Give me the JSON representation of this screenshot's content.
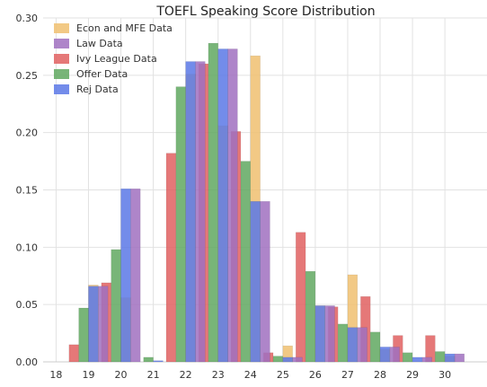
{
  "chart_data": {
    "type": "bar",
    "title": "TOEFL Speaking Score Distribution",
    "xlabel": "",
    "ylabel": "",
    "categories": [
      "18",
      "19",
      "20",
      "21",
      "22",
      "23",
      "24",
      "25",
      "26",
      "27",
      "28",
      "29",
      "30"
    ],
    "xlim": [
      17.6,
      31.3
    ],
    "ylim": [
      0,
      0.3
    ],
    "yticks": [
      0.0,
      0.05,
      0.1,
      0.15,
      0.2,
      0.25,
      0.3
    ],
    "ytick_labels": [
      "0.00",
      "0.05",
      "0.10",
      "0.15",
      "0.20",
      "0.25",
      "0.30"
    ],
    "grid": true,
    "legend_position": "top-left",
    "series": [
      {
        "name": "Econ and MFE Data",
        "color": "#f0c070",
        "offset": 0.0,
        "values": [
          0.0,
          0.067,
          0.056,
          0.0,
          0.251,
          0.206,
          0.267,
          0.014,
          0.049,
          0.076,
          0.011,
          0.0,
          0.005
        ]
      },
      {
        "name": "Law Data",
        "color": "#a070c0",
        "offset": 0.3,
        "values": [
          0.0,
          0.066,
          0.151,
          0.0,
          0.262,
          0.273,
          0.14,
          0.004,
          0.049,
          0.03,
          0.013,
          0.004,
          0.007
        ]
      },
      {
        "name": "Ivy League Data",
        "color": "#e06060",
        "offset": -0.6,
        "values": [
          0.0,
          0.015,
          0.069,
          0.0,
          0.182,
          0.26,
          0.201,
          0.008,
          0.113,
          0.048,
          0.057,
          0.023,
          0.023
        ]
      },
      {
        "name": "Offer Data",
        "color": "#60a860",
        "offset": -0.3,
        "values": [
          0.0,
          0.047,
          0.098,
          0.004,
          0.24,
          0.278,
          0.175,
          0.005,
          0.079,
          0.033,
          0.026,
          0.008,
          0.009
        ]
      },
      {
        "name": "Rej Data",
        "color": "#5b78e6",
        "offset": 0.0,
        "values": [
          0.0,
          0.066,
          0.151,
          0.001,
          0.262,
          0.273,
          0.14,
          0.004,
          0.049,
          0.03,
          0.013,
          0.004,
          0.007
        ]
      }
    ],
    "draw_order": [
      2,
      3,
      1,
      0,
      4
    ],
    "bar_width": 0.3
  }
}
